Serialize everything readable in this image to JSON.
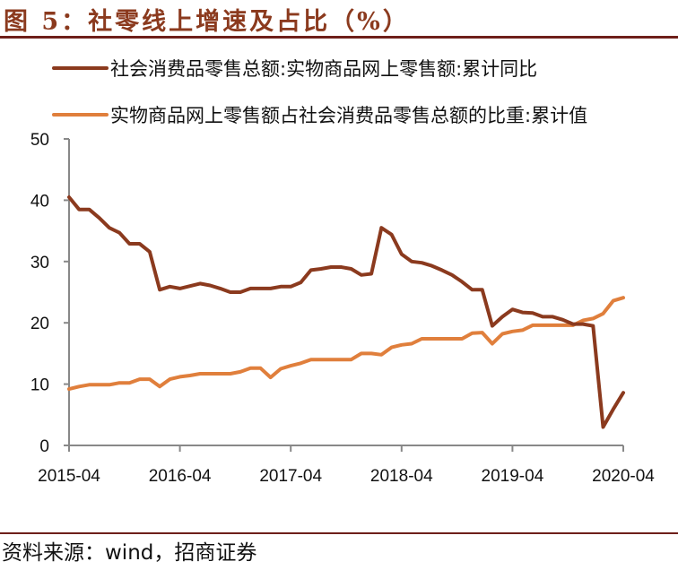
{
  "title": "图 5：社零线上增速及占比（%）",
  "source": "资料来源：wind，招商证券",
  "colors": {
    "series1": "#8b3a1e",
    "series2": "#e07f3c",
    "axis": "#888888",
    "title": "#8b3a1e"
  },
  "legend": [
    {
      "label": "社会消费品零售总额:实物商品网上零售额:累计同比"
    },
    {
      "label": "实物商品网上零售额占社会消费品零售总额的比重:累计值"
    }
  ],
  "chart_data": {
    "type": "line",
    "title": "社零线上增速及占比（%）",
    "xlabel": "",
    "ylabel": "",
    "ylim": [
      0,
      50
    ],
    "yticks": [
      0,
      10,
      20,
      30,
      40,
      50
    ],
    "xticks": [
      "2015-04",
      "2016-04",
      "2017-04",
      "2018-04",
      "2019-04",
      "2020-04"
    ],
    "grid": false,
    "legend_position": "top",
    "x": [
      "2015-04",
      "2015-05",
      "2015-06",
      "2015-07",
      "2015-08",
      "2015-09",
      "2015-10",
      "2015-11",
      "2015-12",
      "2016-02",
      "2016-03",
      "2016-04",
      "2016-05",
      "2016-06",
      "2016-07",
      "2016-08",
      "2016-09",
      "2016-10",
      "2016-11",
      "2016-12",
      "2017-02",
      "2017-03",
      "2017-04",
      "2017-05",
      "2017-06",
      "2017-07",
      "2017-08",
      "2017-09",
      "2017-10",
      "2017-11",
      "2017-12",
      "2018-02",
      "2018-03",
      "2018-04",
      "2018-05",
      "2018-06",
      "2018-07",
      "2018-08",
      "2018-09",
      "2018-10",
      "2018-11",
      "2018-12",
      "2019-02",
      "2019-03",
      "2019-04",
      "2019-05",
      "2019-06",
      "2019-07",
      "2019-08",
      "2019-09",
      "2019-10",
      "2019-11",
      "2019-12",
      "2020-02",
      "2020-03",
      "2020-04"
    ],
    "series": [
      {
        "name": "社会消费品零售总额:实物商品网上零售额:累计同比",
        "values": [
          40.5,
          38.5,
          38.5,
          37.1,
          35.5,
          34.7,
          32.9,
          32.9,
          31.6,
          25.4,
          25.9,
          25.6,
          26.0,
          26.4,
          26.1,
          25.6,
          25.0,
          25.0,
          25.6,
          25.6,
          25.6,
          25.9,
          25.9,
          26.6,
          28.6,
          28.8,
          29.1,
          29.1,
          28.8,
          27.8,
          28.0,
          35.5,
          34.4,
          31.2,
          30.0,
          29.8,
          29.3,
          28.6,
          27.8,
          26.7,
          25.4,
          25.4,
          19.5,
          21.0,
          22.2,
          21.7,
          21.6,
          21.0,
          21.0,
          20.5,
          19.8,
          19.8,
          19.5,
          3.0,
          5.9,
          8.6
        ]
      },
      {
        "name": "实物商品网上零售额占社会消费品零售总额的比重:累计值",
        "values": [
          9.2,
          9.6,
          9.9,
          9.9,
          9.9,
          10.2,
          10.2,
          10.8,
          10.8,
          9.6,
          10.8,
          11.2,
          11.4,
          11.7,
          11.7,
          11.7,
          11.7,
          12.0,
          12.6,
          12.6,
          11.1,
          12.5,
          13.0,
          13.4,
          14.0,
          14.0,
          14.0,
          14.0,
          14.0,
          15.0,
          15.0,
          14.8,
          16.0,
          16.4,
          16.6,
          17.4,
          17.4,
          17.4,
          17.4,
          17.4,
          18.3,
          18.4,
          16.6,
          18.2,
          18.6,
          18.8,
          19.6,
          19.6,
          19.6,
          19.6,
          19.6,
          20.4,
          20.7,
          21.5,
          23.6,
          24.1
        ]
      }
    ]
  }
}
